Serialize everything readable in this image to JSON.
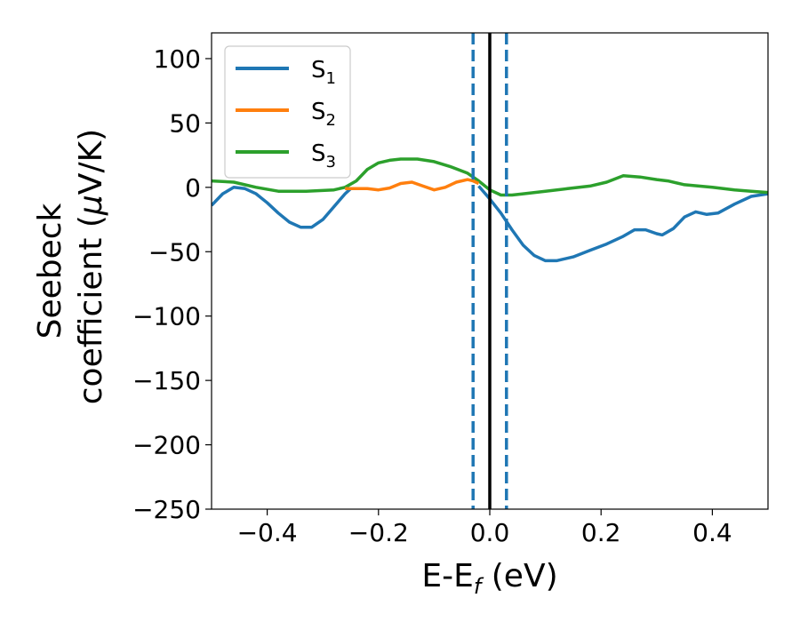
{
  "chart_data": {
    "type": "line",
    "title": "",
    "xlabel": {
      "main": "E-E",
      "sub": "f",
      "unit": " (eV)"
    },
    "ylabel": {
      "line1": "Seebeck",
      "line2": "coefficient  (",
      "mu": "μ",
      "unit": "V/K)"
    },
    "xlim": [
      -0.5,
      0.5
    ],
    "ylim": [
      -250,
      120
    ],
    "xticks": [
      -0.4,
      -0.2,
      0.0,
      0.2,
      0.4
    ],
    "xtick_labels": [
      "−0.4",
      "−0.2",
      "0.0",
      "0.2",
      "0.4"
    ],
    "yticks": [
      100,
      50,
      0,
      -50,
      -100,
      -150,
      -200,
      -250
    ],
    "ytick_labels": [
      "100",
      "50",
      "0",
      "−50",
      "−100",
      "−150",
      "−200",
      "−250"
    ],
    "grid": false,
    "legend_position": "top-left",
    "series": [
      {
        "name": "S",
        "name_sub": "1",
        "color": "#1f77b4",
        "points": [
          [
            -0.5,
            -14
          ],
          [
            -0.48,
            -5
          ],
          [
            -0.46,
            0
          ],
          [
            -0.44,
            -1
          ],
          [
            -0.42,
            -5
          ],
          [
            -0.4,
            -12
          ],
          [
            -0.38,
            -20
          ],
          [
            -0.36,
            -27
          ],
          [
            -0.34,
            -31
          ],
          [
            -0.32,
            -31
          ],
          [
            -0.3,
            -25
          ],
          [
            -0.28,
            -15
          ],
          [
            -0.26,
            -5
          ],
          [
            -0.25,
            -1
          ]
        ]
      },
      {
        "name": "S",
        "name_sub": "2",
        "color": "#ff7f0e",
        "points": [
          [
            -0.26,
            -1
          ],
          [
            -0.24,
            -1
          ],
          [
            -0.22,
            -1
          ],
          [
            -0.2,
            -2
          ],
          [
            -0.18,
            -0.5
          ],
          [
            -0.16,
            3
          ],
          [
            -0.14,
            4
          ],
          [
            -0.12,
            1
          ],
          [
            -0.1,
            -2
          ],
          [
            -0.08,
            0
          ],
          [
            -0.06,
            4
          ],
          [
            -0.04,
            6
          ],
          [
            -0.03,
            5
          ],
          [
            -0.02,
            3
          ]
        ]
      },
      {
        "name": "S",
        "name_sub": "3",
        "color": "#2ca02c",
        "points": [
          [
            -0.5,
            5
          ],
          [
            -0.46,
            4
          ],
          [
            -0.42,
            0
          ],
          [
            -0.38,
            -3
          ],
          [
            -0.33,
            -3
          ],
          [
            -0.28,
            -2
          ],
          [
            -0.26,
            0
          ],
          [
            -0.24,
            5
          ],
          [
            -0.22,
            14
          ],
          [
            -0.2,
            19
          ],
          [
            -0.18,
            21
          ],
          [
            -0.16,
            22
          ],
          [
            -0.13,
            22
          ],
          [
            -0.1,
            20
          ],
          [
            -0.07,
            16
          ],
          [
            -0.04,
            11
          ],
          [
            -0.02,
            5
          ],
          [
            0.0,
            -2
          ],
          [
            0.02,
            -6
          ],
          [
            0.04,
            -6
          ],
          [
            0.06,
            -5
          ],
          [
            0.1,
            -3
          ],
          [
            0.14,
            -1
          ],
          [
            0.18,
            1
          ],
          [
            0.21,
            4
          ],
          [
            0.24,
            9
          ],
          [
            0.27,
            8
          ],
          [
            0.3,
            6
          ],
          [
            0.32,
            5
          ],
          [
            0.35,
            2
          ],
          [
            0.4,
            0
          ],
          [
            0.44,
            -2
          ],
          [
            0.47,
            -3
          ],
          [
            0.5,
            -4
          ]
        ]
      }
    ],
    "s1_right_branch": {
      "color": "#1f77b4",
      "points": [
        [
          -0.02,
          1
        ],
        [
          0.0,
          -9
        ],
        [
          0.02,
          -20
        ],
        [
          0.04,
          -33
        ],
        [
          0.06,
          -45
        ],
        [
          0.08,
          -53
        ],
        [
          0.1,
          -57
        ],
        [
          0.12,
          -57
        ],
        [
          0.15,
          -54
        ],
        [
          0.18,
          -49
        ],
        [
          0.21,
          -44
        ],
        [
          0.24,
          -38
        ],
        [
          0.26,
          -33
        ],
        [
          0.28,
          -33
        ],
        [
          0.3,
          -36
        ],
        [
          0.31,
          -37
        ],
        [
          0.33,
          -32
        ],
        [
          0.35,
          -23
        ],
        [
          0.37,
          -19
        ],
        [
          0.39,
          -21
        ],
        [
          0.41,
          -20
        ],
        [
          0.44,
          -13
        ],
        [
          0.47,
          -7
        ],
        [
          0.5,
          -5
        ]
      ]
    },
    "vertical_lines": [
      {
        "x": -0.03,
        "style": "dashed",
        "color": "#1f77b4"
      },
      {
        "x": 0.0,
        "style": "solid",
        "color": "#000000"
      },
      {
        "x": 0.03,
        "style": "dashed",
        "color": "#1f77b4"
      }
    ]
  }
}
